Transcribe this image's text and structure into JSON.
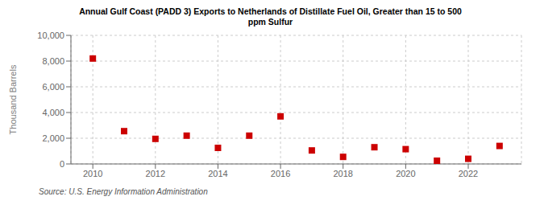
{
  "chart_data": {
    "type": "scatter",
    "title": "Annual Gulf Coast (PADD 3) Exports to Netherlands of Distillate Fuel Oil, Greater than 15 to 500\nppm Sulfur",
    "ylabel": "Thousand Barrels",
    "source": "Source: U.S. Energy Information Administration",
    "x": [
      2010,
      2011,
      2012,
      2013,
      2014,
      2015,
      2016,
      2017,
      2018,
      2019,
      2020,
      2021,
      2022,
      2023
    ],
    "values": [
      8200,
      2550,
      1950,
      2200,
      1250,
      2200,
      3700,
      1050,
      550,
      1300,
      1150,
      250,
      400,
      1400
    ],
    "color": "#cc0000",
    "marker": "square",
    "xlim": [
      2009.3,
      2023.7
    ],
    "ylim": [
      0,
      10000
    ],
    "xticks": [
      2010,
      2012,
      2014,
      2016,
      2018,
      2020,
      2022
    ],
    "yticks": [
      0,
      {
        "value": 2000,
        "label": "2,000"
      },
      {
        "value": 4000,
        "label": "4,000"
      },
      {
        "value": 6000,
        "label": "6,000"
      },
      {
        "value": 8000,
        "label": "8,000"
      },
      {
        "value": 10000,
        "label": "10,000"
      }
    ],
    "grid": true
  }
}
